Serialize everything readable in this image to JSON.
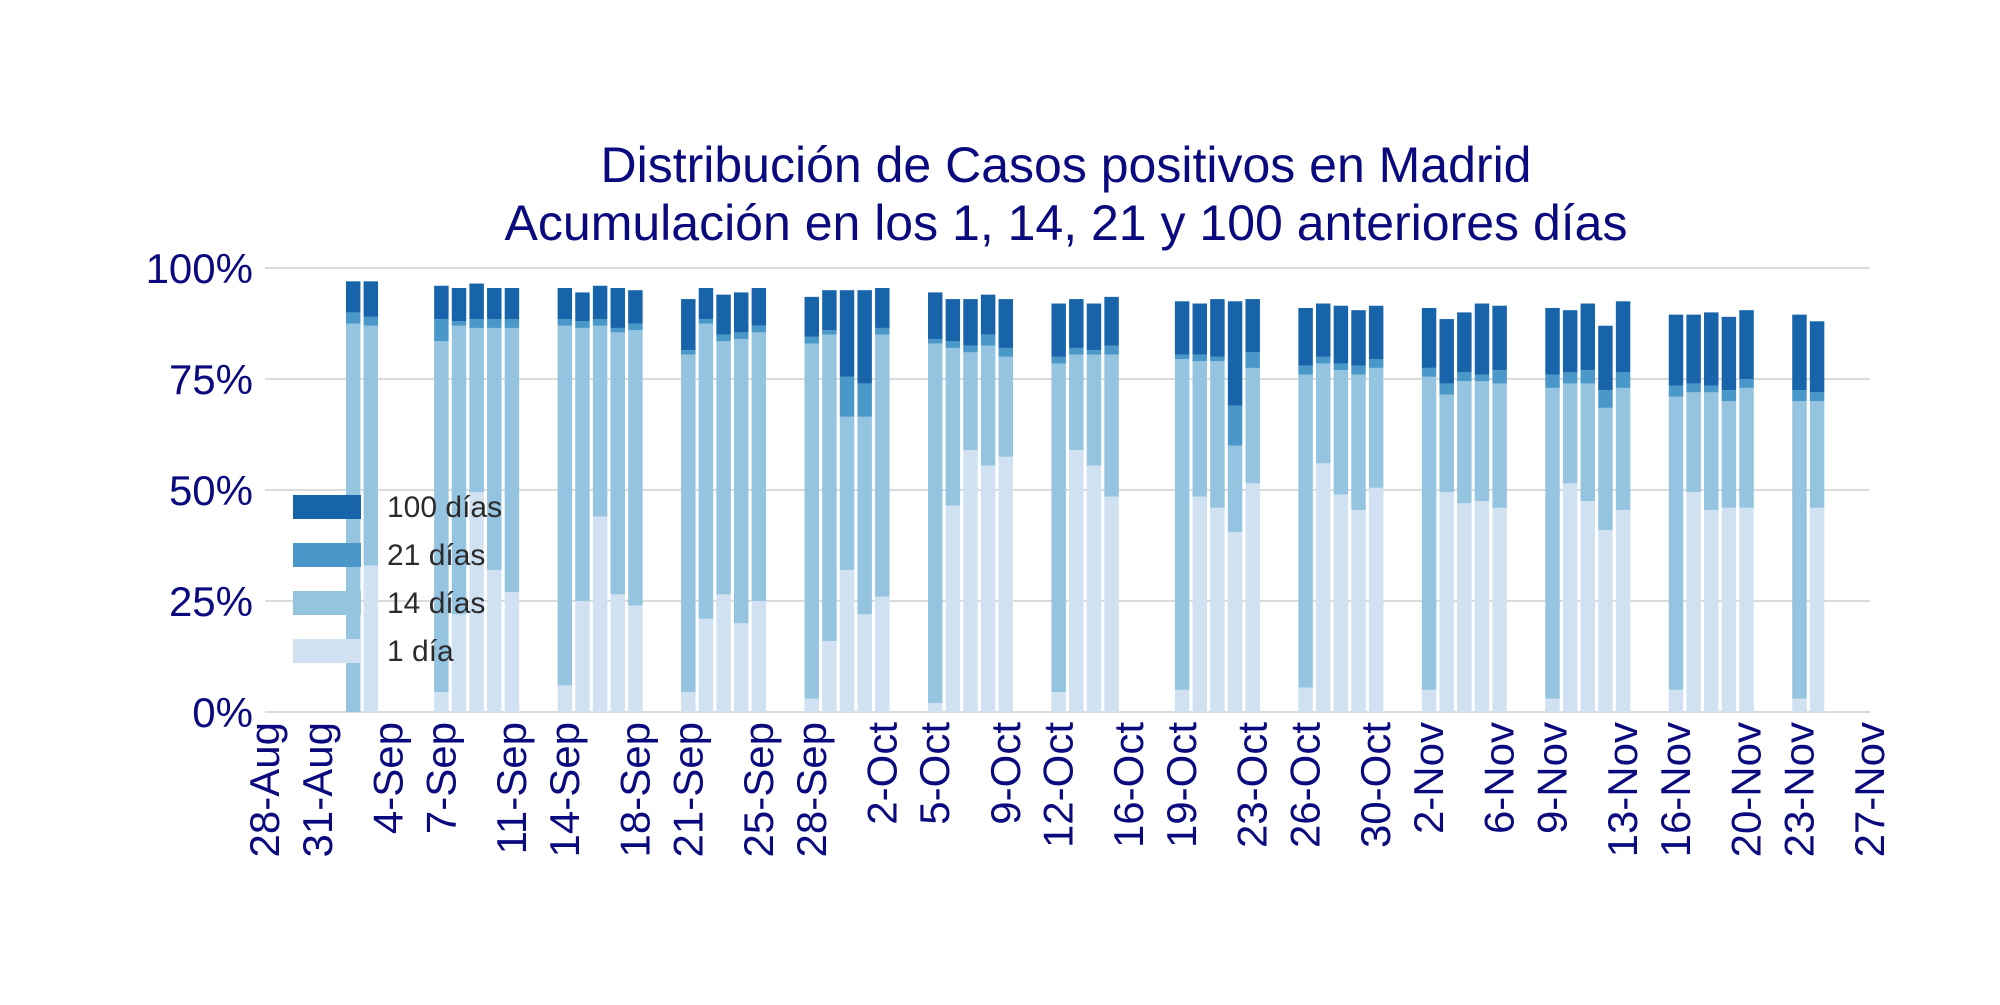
{
  "chart_data": {
    "type": "bar",
    "stacked": true,
    "title": "Distribución de Casos positivos en Madrid",
    "subtitle": "Acumulación en los 1, 14, 21 y 100 anteriores días",
    "y_tick_labels": [
      "0%",
      "25%",
      "50%",
      "75%",
      "100%"
    ],
    "y_ticks": [
      0,
      25,
      50,
      75,
      100
    ],
    "ylim": [
      0,
      100
    ],
    "grid": "horizontal",
    "legend_position": "center-left",
    "x_tick_labels": [
      "28-Aug",
      "31-Aug",
      "4-Sep",
      "7-Sep",
      "11-Sep",
      "14-Sep",
      "18-Sep",
      "21-Sep",
      "25-Sep",
      "28-Sep",
      "2-Oct",
      "5-Oct",
      "9-Oct",
      "12-Oct",
      "16-Oct",
      "19-Oct",
      "23-Oct",
      "26-Oct",
      "30-Oct",
      "2-Nov",
      "6-Nov",
      "9-Nov",
      "13-Nov",
      "16-Nov",
      "20-Nov",
      "23-Nov",
      "27-Nov"
    ],
    "series_colors": [
      "#d0e1f2",
      "#94c4df",
      "#4a98c9",
      "#1764ab"
    ],
    "legend": [
      {
        "label": "100 días",
        "color": "#1764ab"
      },
      {
        "label": "21 días",
        "color": "#4a98c9"
      },
      {
        "label": "14 días",
        "color": "#94c4df"
      },
      {
        "label": "1 día",
        "color": "#d0e1f2"
      }
    ],
    "bars": [
      {
        "date": "2-Sep",
        "values": [
          0,
          87.5,
          90,
          97
        ]
      },
      {
        "date": "3-Sep",
        "values": [
          33,
          87,
          89,
          97
        ]
      },
      {
        "date": "7-Sep",
        "values": [
          4.5,
          83.5,
          88.5,
          96
        ]
      },
      {
        "date": "8-Sep",
        "values": [
          22,
          87,
          88,
          95.5
        ]
      },
      {
        "date": "9-Sep",
        "values": [
          49.5,
          86.5,
          88.5,
          96.5
        ]
      },
      {
        "date": "10-Sep",
        "values": [
          32,
          86.5,
          88.5,
          95.5
        ]
      },
      {
        "date": "11-Sep",
        "values": [
          27,
          86.5,
          88.5,
          95.5
        ]
      },
      {
        "date": "14-Sep",
        "values": [
          6,
          87,
          88.5,
          95.5
        ]
      },
      {
        "date": "15-Sep",
        "values": [
          25,
          86.5,
          88,
          94.5
        ]
      },
      {
        "date": "16-Sep",
        "values": [
          44,
          87,
          88.5,
          96
        ]
      },
      {
        "date": "17-Sep",
        "values": [
          26.5,
          85.5,
          86.5,
          95.5
        ]
      },
      {
        "date": "18-Sep",
        "values": [
          24,
          86,
          87.5,
          95
        ]
      },
      {
        "date": "21-Sep",
        "values": [
          4.5,
          80.5,
          81.5,
          93
        ]
      },
      {
        "date": "22-Sep",
        "values": [
          21,
          87.5,
          88.5,
          95.5
        ]
      },
      {
        "date": "23-Sep",
        "values": [
          26.5,
          83.5,
          85,
          94
        ]
      },
      {
        "date": "24-Sep",
        "values": [
          20,
          84,
          85.5,
          94.5
        ]
      },
      {
        "date": "25-Sep",
        "values": [
          25,
          85.5,
          87,
          95.5
        ]
      },
      {
        "date": "28-Sep",
        "values": [
          3,
          83,
          84.5,
          93.5
        ]
      },
      {
        "date": "29-Sep",
        "values": [
          16,
          85,
          86,
          95
        ]
      },
      {
        "date": "30-Sep",
        "values": [
          32,
          66.5,
          75.5,
          95
        ]
      },
      {
        "date": "1-Oct",
        "values": [
          22,
          66.5,
          74,
          95
        ]
      },
      {
        "date": "2-Oct",
        "values": [
          26,
          85,
          86.5,
          95.5
        ]
      },
      {
        "date": "5-Oct",
        "values": [
          2,
          83,
          84,
          94.5
        ]
      },
      {
        "date": "6-Oct",
        "values": [
          46.5,
          82,
          83.5,
          93
        ]
      },
      {
        "date": "7-Oct",
        "values": [
          59,
          81,
          82.5,
          93
        ]
      },
      {
        "date": "8-Oct",
        "values": [
          55.5,
          82.5,
          85,
          94
        ]
      },
      {
        "date": "9-Oct",
        "values": [
          57.5,
          80,
          82,
          93
        ]
      },
      {
        "date": "12-Oct",
        "values": [
          4.5,
          78.5,
          80,
          92
        ]
      },
      {
        "date": "13-Oct",
        "values": [
          59,
          80.5,
          82,
          93
        ]
      },
      {
        "date": "14-Oct",
        "values": [
          55.5,
          80.5,
          81.5,
          92
        ]
      },
      {
        "date": "15-Oct",
        "values": [
          48.5,
          80.5,
          82.5,
          93.5
        ]
      },
      {
        "date": "19-Oct",
        "values": [
          5,
          79.5,
          80.5,
          92.5
        ]
      },
      {
        "date": "20-Oct",
        "values": [
          48.5,
          79,
          80.5,
          92
        ]
      },
      {
        "date": "21-Oct",
        "values": [
          46,
          79,
          80,
          93
        ]
      },
      {
        "date": "22-Oct",
        "values": [
          40.5,
          60,
          69,
          92.5
        ]
      },
      {
        "date": "23-Oct",
        "values": [
          51.5,
          77.5,
          81,
          93
        ]
      },
      {
        "date": "26-Oct",
        "values": [
          5.5,
          76,
          78,
          91
        ]
      },
      {
        "date": "27-Oct",
        "values": [
          56,
          78.5,
          80,
          92
        ]
      },
      {
        "date": "28-Oct",
        "values": [
          49,
          77,
          78.5,
          91.5
        ]
      },
      {
        "date": "29-Oct",
        "values": [
          45.5,
          76,
          78,
          90.5
        ]
      },
      {
        "date": "30-Oct",
        "values": [
          50.5,
          77.5,
          79.5,
          91.5
        ]
      },
      {
        "date": "2-Nov",
        "values": [
          5,
          75.5,
          77.5,
          91
        ]
      },
      {
        "date": "3-Nov",
        "values": [
          49.5,
          71.5,
          74,
          88.5
        ]
      },
      {
        "date": "4-Nov",
        "values": [
          47,
          74.5,
          76.5,
          90
        ]
      },
      {
        "date": "5-Nov",
        "values": [
          47.5,
          74.5,
          76,
          92
        ]
      },
      {
        "date": "6-Nov",
        "values": [
          46,
          74,
          77,
          91.5
        ]
      },
      {
        "date": "9-Nov",
        "values": [
          3,
          73,
          76,
          91
        ]
      },
      {
        "date": "10-Nov",
        "values": [
          51.5,
          74,
          76.5,
          90.5
        ]
      },
      {
        "date": "11-Nov",
        "values": [
          47.5,
          74,
          77,
          92
        ]
      },
      {
        "date": "12-Nov",
        "values": [
          41,
          68.5,
          72.5,
          87
        ]
      },
      {
        "date": "13-Nov",
        "values": [
          45.5,
          73,
          76.5,
          92.5
        ]
      },
      {
        "date": "16-Nov",
        "values": [
          5,
          71,
          73.5,
          89.5
        ]
      },
      {
        "date": "17-Nov",
        "values": [
          49.5,
          72,
          74,
          89.5
        ]
      },
      {
        "date": "18-Nov",
        "values": [
          45.5,
          72,
          73.5,
          90
        ]
      },
      {
        "date": "19-Nov",
        "values": [
          46,
          70,
          72.5,
          89
        ]
      },
      {
        "date": "20-Nov",
        "values": [
          46,
          73,
          75,
          90.5
        ]
      },
      {
        "date": "23-Nov",
        "values": [
          3,
          70,
          72.5,
          89.5
        ]
      },
      {
        "date": "24-Nov",
        "values": [
          46,
          70,
          72,
          88
        ]
      }
    ]
  }
}
